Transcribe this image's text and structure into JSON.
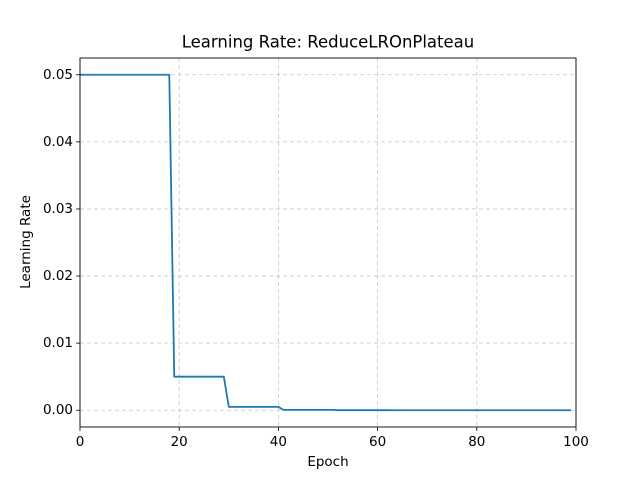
{
  "chart_data": {
    "type": "line",
    "title": "Learning Rate: ReduceLROnPlateau",
    "xlabel": "Epoch",
    "ylabel": "Learning Rate",
    "x": [
      0,
      1,
      2,
      3,
      4,
      5,
      6,
      7,
      8,
      9,
      10,
      11,
      12,
      13,
      14,
      15,
      16,
      17,
      18,
      19,
      20,
      21,
      22,
      23,
      24,
      25,
      26,
      27,
      28,
      29,
      30,
      31,
      32,
      33,
      34,
      35,
      36,
      37,
      38,
      39,
      40,
      41,
      42,
      43,
      44,
      45,
      46,
      47,
      48,
      49,
      50,
      51,
      52,
      53,
      54,
      55,
      56,
      57,
      58,
      59,
      60,
      61,
      62,
      63,
      64,
      65,
      66,
      67,
      68,
      69,
      70,
      71,
      72,
      73,
      74,
      75,
      76,
      77,
      78,
      79,
      80,
      81,
      82,
      83,
      84,
      85,
      86,
      87,
      88,
      89,
      90,
      91,
      92,
      93,
      94,
      95,
      96,
      97,
      98,
      99
    ],
    "values": [
      0.05,
      0.05,
      0.05,
      0.05,
      0.05,
      0.05,
      0.05,
      0.05,
      0.05,
      0.05,
      0.05,
      0.05,
      0.05,
      0.05,
      0.05,
      0.05,
      0.05,
      0.05,
      0.05,
      0.005,
      0.005,
      0.005,
      0.005,
      0.005,
      0.005,
      0.005,
      0.005,
      0.005,
      0.005,
      0.005,
      0.0005,
      0.0005,
      0.0005,
      0.0005,
      0.0005,
      0.0005,
      0.0005,
      0.0005,
      0.0005,
      0.0005,
      0.0005,
      5e-05,
      5e-05,
      5e-05,
      5e-05,
      5e-05,
      5e-05,
      5e-05,
      5e-05,
      5e-05,
      5e-05,
      5e-05,
      5e-06,
      5e-06,
      5e-06,
      5e-06,
      5e-06,
      5e-06,
      5e-06,
      5e-06,
      5e-06,
      5e-06,
      5e-06,
      5e-07,
      5e-07,
      5e-07,
      5e-07,
      5e-07,
      5e-07,
      5e-07,
      5e-07,
      5e-07,
      5e-07,
      5e-07,
      5e-08,
      5e-08,
      5e-08,
      5e-08,
      5e-08,
      5e-08,
      5e-08,
      5e-08,
      5e-08,
      5e-08,
      5e-08,
      5e-09,
      5e-09,
      5e-09,
      5e-09,
      5e-09,
      5e-09,
      5e-09,
      5e-09,
      5e-09,
      5e-09,
      5e-09,
      5e-10,
      5e-10,
      5e-10,
      5e-10
    ],
    "color": "#1f77b4",
    "xlim": [
      0,
      100
    ],
    "xticks": [
      0,
      20,
      40,
      60,
      80,
      100
    ],
    "ylim": [
      -0.0025,
      0.0525
    ],
    "yticks": [
      {
        "value": 0,
        "label": "0.00"
      },
      {
        "value": 0.01,
        "label": "0.01"
      },
      {
        "value": 0.02,
        "label": "0.02"
      },
      {
        "value": 0.03,
        "label": "0.03"
      },
      {
        "value": 0.04,
        "label": "0.04"
      },
      {
        "value": 0.05,
        "label": "0.05"
      }
    ],
    "grid": true
  }
}
